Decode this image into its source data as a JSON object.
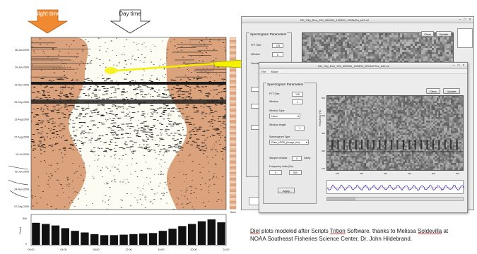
{
  "labels": {
    "night_time": "Night time",
    "day_time": "Day time"
  },
  "y_axis_dates": [
    "26-Jun-2009",
    "24-Jan-2009",
    "11-Nov-2009",
    "29-Sep-2009",
    "13-Aug-2009",
    "27-Aug-2009",
    "15-Jul-2009",
    "02-Jun-2009",
    "24-Nov-2009",
    "07-Sep-2009"
  ],
  "right_axis_label": "lfkem",
  "histogram": {
    "x_ticks": [
      "00:00",
      "04:00",
      "08:00",
      "12:00",
      "16:00",
      "20:00",
      "24:00"
    ],
    "y_ticks": [
      "500",
      "0"
    ],
    "y_axis_label": "Count",
    "bar_fractions": [
      0.82,
      0.78,
      0.72,
      0.62,
      0.52,
      0.46,
      0.4,
      0.36,
      0.36,
      0.38,
      0.4,
      0.42,
      0.44,
      0.52,
      0.6,
      0.7,
      0.78,
      0.88,
      0.95,
      0.84
    ]
  },
  "back_window": {
    "title": "DE_Clip_Box_100_050004_102800_1055t40a_b42.x2",
    "panel_title": "Spectrogram Parameters",
    "fields": [
      {
        "label": "FFT Size",
        "value": "128"
      },
      {
        "label": "Window",
        "value": "8"
      },
      {
        "label": "Overlap",
        "value": ""
      }
    ],
    "buttons": [
      "Clear",
      "Update"
    ]
  },
  "front_window": {
    "title": "DE_Clip_Box_100_050004_102800_1R04d774x_b42.x2",
    "menus": [
      "File",
      "Mode"
    ],
    "panel_title": "Spectrogram Parameters",
    "fields": [
      {
        "label": "FFT Size",
        "value": "128"
      },
      {
        "label": "Window",
        "value": "1"
      },
      {
        "label": "Window Type",
        "value": "Hann"
      },
      {
        "label": "Window length",
        "value": "1"
      },
      {
        "label": "Spectrogram Type",
        "value": "Plain_sPSD_(Image_fcn)"
      },
      {
        "label": "Sample window",
        "value": "0",
        "unit": "Samp"
      },
      {
        "label": "Frequency limits (Hz)",
        "value": "0",
        "value2": "500"
      }
    ],
    "apply_button": "Apply",
    "top_buttons": [
      "Clear",
      "Update"
    ],
    "spectrogram_y_label": "Frequency (Hz)",
    "spectrogram_y_ticks": [
      "500",
      "400",
      "300",
      "200",
      "100"
    ],
    "spectrogram_x_ticks": [
      "100",
      "200",
      "300",
      "400",
      "500",
      "600"
    ]
  },
  "caption": {
    "part1": "Diel",
    "part2": " plots modeled after Scripts ",
    "part3": "Trition",
    "part4": " Software.  thanks to Melissa ",
    "part5": "Soldevilla",
    "part6": " at",
    "line2": "NOAA Southeast Fisheries Science Center, Dr. John  Hildebrand."
  },
  "colors": {
    "night_band": "#d9a07a",
    "night_band_light": "#efc3a0",
    "day_region": "#fdfcf3",
    "detections": "#111111",
    "arrow_night_fill": "#f08a32",
    "arrow_highlight": "#f5f000",
    "spectrogram_gray": "#808080",
    "timeseries_blue": "#2a3fbf"
  }
}
